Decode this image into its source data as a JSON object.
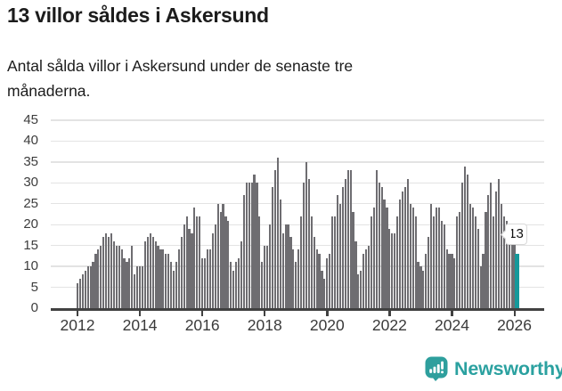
{
  "header": {
    "title": "13 villor såldes i Askersund",
    "subtitle_line1": "Antal sålda villor i Askersund under de senaste tre",
    "subtitle_line2": "månaderna."
  },
  "chart_data": {
    "type": "bar",
    "title": "13 villor såldes i Askersund",
    "subtitle": "Antal sålda villor i Askersund under de senaste tre månaderna.",
    "frequency": "monthly",
    "x_start_month": "2012-01",
    "x_end_month": "2026-02",
    "values": [
      6,
      7,
      8,
      9,
      10,
      10,
      11,
      13,
      14,
      15,
      17,
      18,
      17,
      18,
      16,
      15,
      15,
      14,
      12,
      11,
      12,
      15,
      8,
      10,
      10,
      10,
      16,
      17,
      18,
      17,
      16,
      15,
      14,
      14,
      13,
      13,
      11,
      9,
      11,
      14,
      17,
      20,
      22,
      19,
      18,
      24,
      22,
      22,
      12,
      12,
      14,
      14,
      18,
      20,
      25,
      23,
      25,
      22,
      21,
      11,
      9,
      11,
      12,
      16,
      27,
      30,
      30,
      30,
      32,
      30,
      22,
      11,
      15,
      15,
      20,
      29,
      33,
      36,
      26,
      18,
      20,
      20,
      17,
      14,
      11,
      14,
      22,
      30,
      35,
      31,
      22,
      17,
      14,
      13,
      9,
      7,
      12,
      13,
      22,
      22,
      27,
      25,
      29,
      31,
      33,
      33,
      23,
      16,
      8,
      9,
      13,
      14,
      15,
      22,
      24,
      33,
      30,
      29,
      26,
      24,
      19,
      18,
      18,
      22,
      26,
      28,
      29,
      31,
      25,
      24,
      22,
      11,
      10,
      9,
      13,
      17,
      25,
      22,
      24,
      24,
      21,
      20,
      14,
      13,
      13,
      12,
      22,
      23,
      30,
      34,
      32,
      25,
      24,
      22,
      19,
      10,
      13,
      23,
      27,
      30,
      22,
      28,
      31,
      25,
      22,
      21,
      20,
      18,
      17,
      13
    ],
    "highlight": {
      "index": 169,
      "value": 13,
      "label": "13"
    },
    "yticks": [
      0,
      5,
      10,
      15,
      20,
      25,
      30,
      35,
      40,
      45
    ],
    "ylim": [
      0,
      45
    ],
    "xticks": [
      2012,
      2014,
      2016,
      2018,
      2020,
      2022,
      2024,
      2026
    ],
    "grid": "horizontal",
    "legend": "none",
    "colors": {
      "bar": "#6e6d71",
      "highlight": "#15999b",
      "gridline": "#e3e3e3",
      "axis": "#414141",
      "text": "#1c1c1c",
      "tick_text": "#3a3a3a"
    }
  },
  "footer": {
    "logo_text": "Newsworthy",
    "logo_color": "#2ba1a0"
  }
}
